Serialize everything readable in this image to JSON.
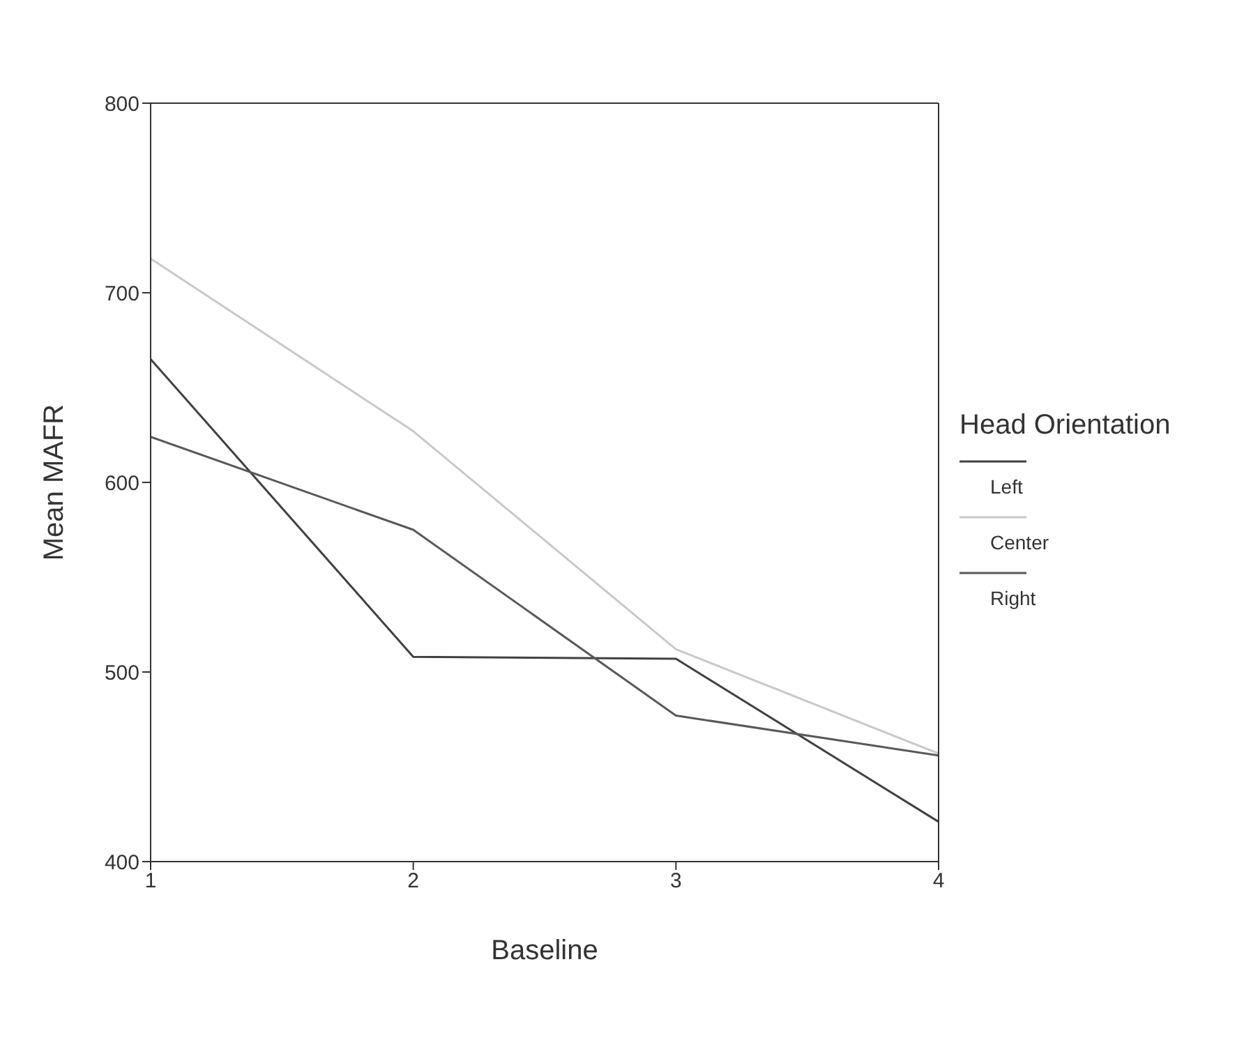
{
  "chart_data": {
    "type": "line",
    "xlabel": "Baseline",
    "ylabel": "Mean MAFR",
    "legend_title": "Head Orientation",
    "legend": "right",
    "grid": false,
    "marker": "none",
    "line_style": "solid",
    "x": [
      1,
      2,
      3,
      4
    ],
    "xlim": [
      1,
      4
    ],
    "xticks": [
      1,
      2,
      3,
      4
    ],
    "ylim": [
      400,
      800
    ],
    "yticks": [
      400,
      500,
      600,
      700,
      800
    ],
    "series": [
      {
        "name": "Left",
        "color": "#404040",
        "values": [
          665,
          508,
          507,
          421
        ]
      },
      {
        "name": "Center",
        "color": "#c8c8c8",
        "values": [
          718,
          627,
          512,
          457
        ]
      },
      {
        "name": "Right",
        "color": "#585858",
        "values": [
          624,
          575,
          477,
          456
        ]
      }
    ]
  }
}
